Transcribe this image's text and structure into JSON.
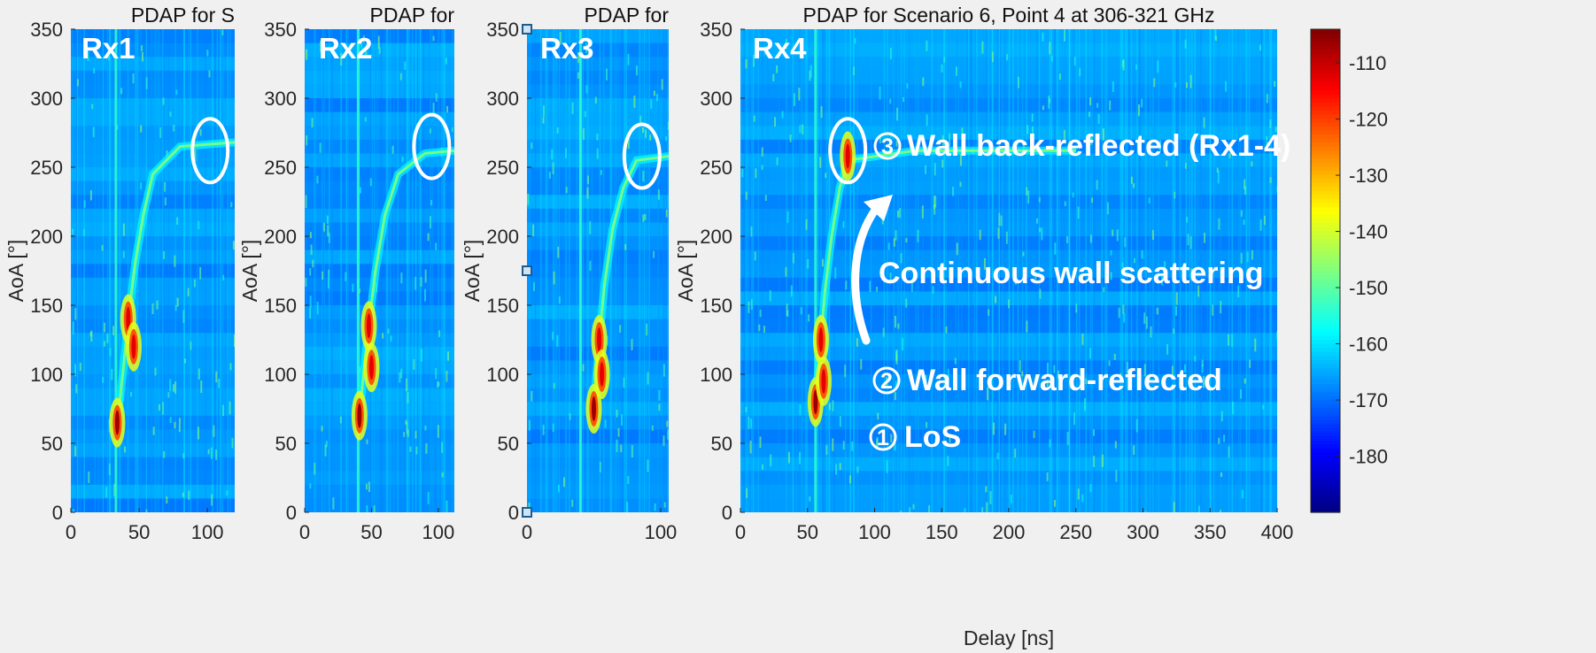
{
  "chart_data": [
    {
      "type": "heatmap",
      "panel_label": "Rx1",
      "title": "PDAP for S",
      "xlabel": "",
      "ylabel": "AoA [°]",
      "xlim": [
        0,
        120
      ],
      "ylim": [
        0,
        350
      ],
      "x_ticks": [
        "0",
        "50",
        "100"
      ],
      "y_ticks": [
        "0",
        "50",
        "100",
        "150",
        "200",
        "250",
        "300",
        "350"
      ],
      "los_delay_ns": 33,
      "wall_path": [
        [
          34,
          65
        ],
        [
          38,
          100
        ],
        [
          42,
          140
        ],
        [
          47,
          180
        ],
        [
          53,
          215
        ],
        [
          60,
          245
        ],
        [
          80,
          265
        ],
        [
          120,
          268
        ]
      ],
      "hot_spots": [
        [
          34,
          65
        ],
        [
          42,
          140
        ],
        [
          46,
          120
        ]
      ],
      "highlight_ellipse": {
        "delay_ns": 102,
        "aoa_deg": 262
      }
    },
    {
      "type": "heatmap",
      "panel_label": "Rx2",
      "title": "PDAP for",
      "xlabel": "",
      "ylabel": "AoA [°]",
      "xlim": [
        0,
        112
      ],
      "ylim": [
        0,
        350
      ],
      "x_ticks": [
        "0",
        "50",
        "100"
      ],
      "y_ticks": [
        "0",
        "50",
        "100",
        "150",
        "200",
        "250",
        "300",
        "350"
      ],
      "los_delay_ns": 40,
      "wall_path": [
        [
          41,
          70
        ],
        [
          44,
          100
        ],
        [
          48,
          135
        ],
        [
          53,
          175
        ],
        [
          60,
          215
        ],
        [
          70,
          245
        ],
        [
          90,
          260
        ],
        [
          112,
          262
        ]
      ],
      "hot_spots": [
        [
          41,
          70
        ],
        [
          48,
          135
        ],
        [
          50,
          105
        ]
      ],
      "highlight_ellipse": {
        "delay_ns": 95,
        "aoa_deg": 265
      }
    },
    {
      "type": "heatmap",
      "panel_label": "Rx3",
      "title": "PDAP for",
      "xlabel": "",
      "ylabel": "AoA [°]",
      "xlim": [
        0,
        106
      ],
      "ylim": [
        0,
        350
      ],
      "x_ticks": [
        "0",
        "100"
      ],
      "y_ticks": [
        "0",
        "50",
        "100",
        "150",
        "200",
        "250",
        "300",
        "350"
      ],
      "los_delay_ns": 40,
      "wall_path": [
        [
          50,
          75
        ],
        [
          54,
          125
        ],
        [
          58,
          165
        ],
        [
          64,
          205
        ],
        [
          72,
          235
        ],
        [
          82,
          255
        ],
        [
          106,
          258
        ]
      ],
      "hot_spots": [
        [
          50,
          75
        ],
        [
          54,
          125
        ],
        [
          56,
          100
        ]
      ],
      "highlight_ellipse": {
        "delay_ns": 86,
        "aoa_deg": 258
      }
    },
    {
      "type": "heatmap",
      "panel_label": "Rx4",
      "title": "PDAP for Scenario 6, Point 4 at 306-321 GHz",
      "xlabel": "Delay [ns]",
      "ylabel": "AoA [°]",
      "xlim": [
        0,
        400
      ],
      "ylim": [
        0,
        350
      ],
      "x_ticks": [
        "0",
        "50",
        "100",
        "150",
        "200",
        "250",
        "300",
        "350",
        "400"
      ],
      "y_ticks": [
        "0",
        "50",
        "100",
        "150",
        "200",
        "250",
        "300",
        "350"
      ],
      "los_delay_ns": 56,
      "wall_path": [
        [
          56,
          80
        ],
        [
          60,
          125
        ],
        [
          63,
          160
        ],
        [
          68,
          200
        ],
        [
          74,
          235
        ],
        [
          80,
          255
        ],
        [
          130,
          262
        ],
        [
          250,
          262
        ]
      ],
      "hot_spots": [
        [
          56,
          80
        ],
        [
          60,
          125
        ],
        [
          62,
          95
        ],
        [
          80,
          258
        ]
      ],
      "highlight_ellipse": {
        "delay_ns": 80,
        "aoa_deg": 262
      },
      "annotations": {
        "wall_back": {
          "number": "3",
          "text": "Wall back-reflected (Rx1-4)"
        },
        "continuous": {
          "text": "Continuous wall scattering"
        },
        "wall_forward": {
          "number": "2",
          "text": "Wall forward-reflected"
        },
        "los": {
          "number": "1",
          "text": "LoS"
        }
      }
    }
  ],
  "colorbar": {
    "min": -190,
    "max": -104,
    "tick_labels": [
      "-110",
      "-120",
      "-130",
      "-140",
      "-150",
      "-160",
      "-170",
      "-180"
    ],
    "tick_values": [
      -110,
      -120,
      -130,
      -140,
      -150,
      -160,
      -170,
      -180
    ],
    "colormap": "jet"
  }
}
